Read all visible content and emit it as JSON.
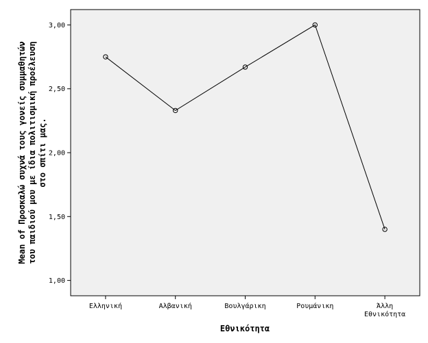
{
  "chart_data": {
    "type": "line",
    "categories": [
      "Ελληνική",
      "Αλβανική",
      "Βουλγάρικη",
      "Ρουμάνικη",
      "Άλλη Εθνικότητα"
    ],
    "category_lines": [
      [
        "Ελληνική"
      ],
      [
        "Αλβανική"
      ],
      [
        "Βουλγάρικη"
      ],
      [
        "Ρουμάνικη"
      ],
      [
        "Άλλη",
        "Εθνικότητα"
      ]
    ],
    "values": [
      2.75,
      2.33,
      2.67,
      3.0,
      1.4
    ],
    "xlabel": "Εθνικότητα",
    "ylabel_lines": [
      "Mean of Προσκαλώ συχνά τους γονείς συμμαθητών",
      "του παιδιού μου με ίδια πολιτισμική προέλευση",
      "στο σπίτι μας."
    ],
    "yticks": [
      1.0,
      1.5,
      2.0,
      2.5,
      3.0
    ],
    "ytick_labels": [
      "1,00",
      "1,50",
      "2,00",
      "2,50",
      "3,00"
    ],
    "ylim": [
      0.88,
      3.12
    ],
    "grid": false,
    "legend": "none",
    "marker": "open-circle",
    "colors": {
      "plot_background": "#f0f0f0",
      "line": "#000000",
      "axis": "#000000"
    }
  }
}
